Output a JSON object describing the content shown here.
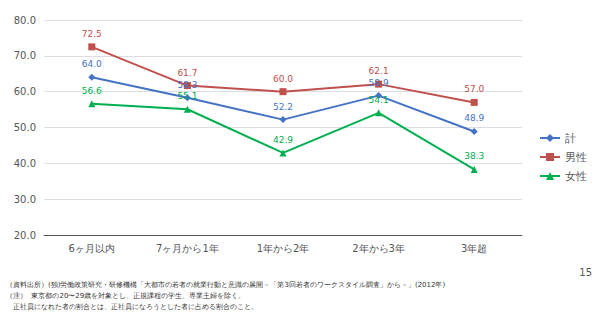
{
  "chart_data": {
    "type": "line",
    "categories": [
      "6ヶ月以内",
      "7ヶ月から1年",
      "1年から2年",
      "2年から3年",
      "3年超"
    ],
    "series": [
      {
        "name": "計",
        "color": "#4472c4",
        "marker": "diamond",
        "values": [
          64.0,
          58.3,
          52.2,
          58.9,
          48.9
        ],
        "value_labels": [
          "64.0",
          "58.3",
          "52.2",
          "58.9",
          "48.9"
        ]
      },
      {
        "name": "男性",
        "color": "#c0504d",
        "marker": "square",
        "values": [
          72.5,
          61.7,
          60.0,
          62.1,
          57.0
        ],
        "value_labels": [
          "72.5",
          "61.7",
          "60.0",
          "62.1",
          "57.0"
        ]
      },
      {
        "name": "女性",
        "color": "#00b050",
        "marker": "triangle",
        "values": [
          56.6,
          55.1,
          42.9,
          54.1,
          38.3
        ],
        "value_labels": [
          "56.6",
          "55.1",
          "42.9",
          "54.1",
          "38.3"
        ]
      }
    ],
    "ylim": [
      20.0,
      80.0
    ],
    "yticks": [
      {
        "value": 20,
        "label": "20.0"
      },
      {
        "value": 30,
        "label": "30.0"
      },
      {
        "value": 40,
        "label": "40.0"
      },
      {
        "value": 50,
        "label": "50.0"
      },
      {
        "value": 60,
        "label": "60.0"
      },
      {
        "value": 70,
        "label": "70.0"
      },
      {
        "value": 80,
        "label": "80.0"
      }
    ],
    "grid": true,
    "legend": "right",
    "data_labels": true,
    "annotations": [
      "（資料出所）(独)労働政策研究・研修機構「大都市の若者の就業行動と意識の展開－「第3回若者のワークスタイル調査」から－」(2012年)",
      "（注）  東京都の20〜29歳を対象とし、正規課程の学生、専業主婦を除く。",
      "　正社員になれた者の割合とは、正社員になろうとした者に占める割合のこと。"
    ],
    "page_number": "15"
  }
}
